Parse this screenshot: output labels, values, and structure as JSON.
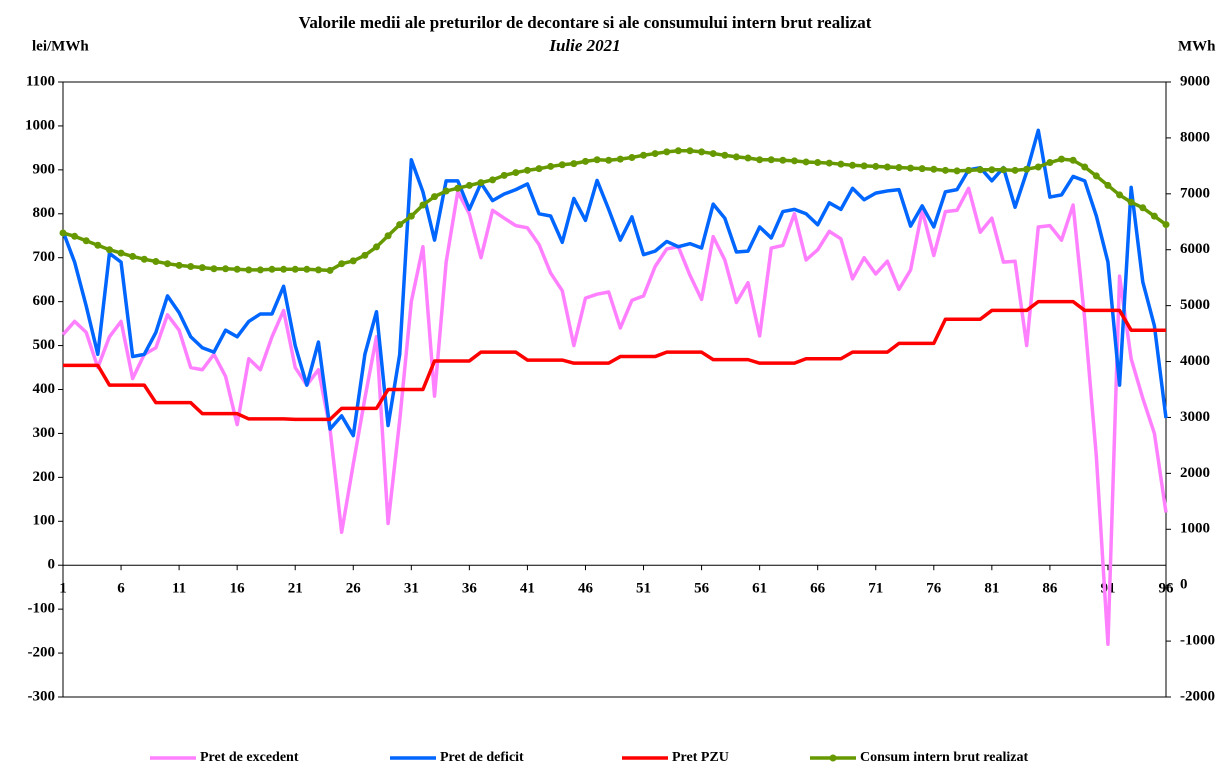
{
  "chart_data": {
    "type": "line",
    "title": "Valorile medii ale preturilor de decontare si ale consumului intern brut realizat",
    "subtitle": "Iulie 2021",
    "ylabel": "lei/MWh",
    "y2label": "MWh",
    "x": [
      1,
      2,
      3,
      4,
      5,
      6,
      7,
      8,
      9,
      10,
      11,
      12,
      13,
      14,
      15,
      16,
      17,
      18,
      19,
      20,
      21,
      22,
      23,
      24,
      25,
      26,
      27,
      28,
      29,
      30,
      31,
      32,
      33,
      34,
      35,
      36,
      37,
      38,
      39,
      40,
      41,
      42,
      43,
      44,
      45,
      46,
      47,
      48,
      49,
      50,
      51,
      52,
      53,
      54,
      55,
      56,
      57,
      58,
      59,
      60,
      61,
      62,
      63,
      64,
      65,
      66,
      67,
      68,
      69,
      70,
      71,
      72,
      73,
      74,
      75,
      76,
      77,
      78,
      79,
      80,
      81,
      82,
      83,
      84,
      85,
      86,
      87,
      88,
      89,
      90,
      91,
      92,
      93,
      94,
      95,
      96
    ],
    "xlim": [
      1,
      96
    ],
    "xticks": [
      1,
      6,
      11,
      16,
      21,
      26,
      31,
      36,
      41,
      46,
      51,
      56,
      61,
      66,
      71,
      76,
      81,
      86,
      91,
      96
    ],
    "ylim": [
      -300,
      1100
    ],
    "yticks": [
      -300,
      -200,
      -100,
      0,
      100,
      200,
      300,
      400,
      500,
      600,
      700,
      800,
      900,
      1000,
      1100
    ],
    "y2lim": [
      -2000,
      9000
    ],
    "y2ticks": [
      -2000,
      -1000,
      0,
      1000,
      2000,
      3000,
      4000,
      5000,
      6000,
      7000,
      8000,
      9000
    ],
    "legend": "bottom",
    "series": [
      {
        "name": "Pret de excedent",
        "color": "#ff80ff",
        "values": [
          525,
          555,
          530,
          450,
          520,
          555,
          425,
          480,
          495,
          570,
          535,
          450,
          445,
          480,
          430,
          320,
          470,
          445,
          520,
          580,
          450,
          410,
          445,
          310,
          75,
          230,
          380,
          520,
          95,
          330,
          600,
          725,
          385,
          690,
          850,
          800,
          700,
          808,
          790,
          773,
          768,
          730,
          665,
          625,
          500,
          608,
          617,
          622,
          540,
          603,
          613,
          680,
          720,
          725,
          660,
          605,
          748,
          695,
          598,
          643,
          522,
          722,
          728,
          800,
          695,
          718,
          760,
          743,
          652,
          700,
          663,
          692,
          628,
          672,
          808,
          705,
          805,
          808,
          858,
          758,
          790,
          690,
          692,
          500,
          770,
          773,
          740,
          820,
          560,
          248,
          -180,
          658,
          470,
          380,
          300,
          120
        ]
      },
      {
        "name": "Pret de deficit",
        "color": "#0066ff",
        "values": [
          760,
          690,
          590,
          480,
          710,
          690,
          475,
          480,
          530,
          613,
          575,
          520,
          495,
          485,
          535,
          520,
          555,
          572,
          572,
          635,
          500,
          410,
          508,
          310,
          340,
          295,
          480,
          577,
          318,
          480,
          923,
          850,
          740,
          875,
          875,
          810,
          870,
          830,
          845,
          855,
          868,
          800,
          795,
          735,
          835,
          785,
          876,
          810,
          740,
          793,
          707,
          715,
          737,
          725,
          732,
          722,
          822,
          790,
          713,
          715,
          770,
          745,
          805,
          810,
          800,
          775,
          825,
          810,
          858,
          832,
          847,
          852,
          855,
          772,
          818,
          770,
          850,
          855,
          900,
          905,
          875,
          905,
          815,
          895,
          990,
          838,
          843,
          885,
          875,
          795,
          690,
          410,
          860,
          645,
          545,
          335
        ]
      },
      {
        "name": "Pret PZU",
        "color": "#ff0000",
        "values": [
          455,
          455,
          455,
          455,
          410,
          410,
          410,
          410,
          370,
          370,
          370,
          370,
          345,
          345,
          345,
          345,
          333,
          333,
          333,
          333,
          332,
          332,
          332,
          332,
          357,
          357,
          357,
          357,
          400,
          400,
          400,
          400,
          465,
          465,
          465,
          465,
          485,
          485,
          485,
          485,
          467,
          467,
          467,
          467,
          460,
          460,
          460,
          460,
          475,
          475,
          475,
          475,
          485,
          485,
          485,
          485,
          468,
          468,
          468,
          468,
          460,
          460,
          460,
          460,
          470,
          470,
          470,
          470,
          485,
          485,
          485,
          485,
          505,
          505,
          505,
          505,
          560,
          560,
          560,
          560,
          580,
          580,
          580,
          580,
          600,
          600,
          600,
          600,
          580,
          580,
          580,
          580,
          535,
          535,
          535,
          535
        ]
      },
      {
        "name": "Consum intern brut realizat",
        "color": "#669900",
        "axis": "y2",
        "markers": true,
        "values": [
          6300,
          6240,
          6160,
          6080,
          6000,
          5940,
          5880,
          5830,
          5790,
          5750,
          5720,
          5700,
          5680,
          5660,
          5660,
          5650,
          5640,
          5640,
          5650,
          5650,
          5650,
          5650,
          5640,
          5630,
          5750,
          5800,
          5900,
          6050,
          6250,
          6450,
          6600,
          6800,
          6950,
          7050,
          7100,
          7150,
          7200,
          7250,
          7330,
          7380,
          7420,
          7450,
          7490,
          7520,
          7540,
          7580,
          7610,
          7600,
          7620,
          7650,
          7690,
          7720,
          7750,
          7770,
          7770,
          7750,
          7720,
          7690,
          7660,
          7640,
          7610,
          7610,
          7600,
          7590,
          7570,
          7560,
          7550,
          7530,
          7510,
          7500,
          7490,
          7480,
          7470,
          7460,
          7450,
          7440,
          7420,
          7410,
          7420,
          7430,
          7430,
          7430,
          7420,
          7440,
          7480,
          7560,
          7620,
          7600,
          7480,
          7320,
          7150,
          6980,
          6850,
          6750,
          6600,
          6450
        ]
      }
    ]
  }
}
